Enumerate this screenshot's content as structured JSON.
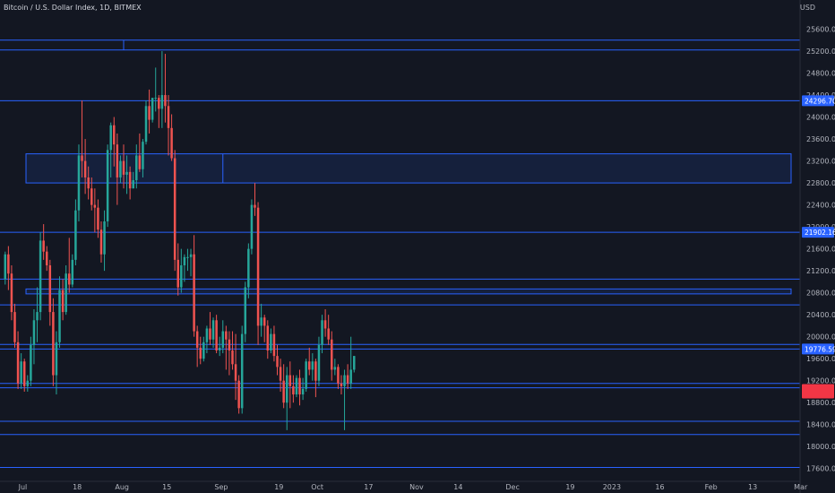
{
  "header": {
    "title": "Bitcoin / U.S. Dollar Index, 1D, BITMEX",
    "currency": "USD"
  },
  "colors": {
    "background": "#131722",
    "up": "#26a69a",
    "down": "#ef5350",
    "level_line": "#2962ff",
    "axis_text": "#b2b5be",
    "price_tag_red": "#f23645"
  },
  "chart_data": {
    "type": "candlestick",
    "title": "Bitcoin / U.S. Dollar Index, 1D, BITMEX",
    "currency": "USD",
    "ylim": [
      17400,
      26000
    ],
    "x_range": [
      0,
      246
    ],
    "y_ticks": [
      "17600.00",
      "18000.00",
      "18400.00",
      "18800.00",
      "19200.00",
      "19600.00",
      "20000.00",
      "20400.00",
      "20800.00",
      "21200.00",
      "21600.00",
      "22000.00",
      "22400.00",
      "22800.00",
      "23200.00",
      "23600.00",
      "24000.00",
      "24400.00",
      "24800.00",
      "25200.00",
      "25600.00"
    ],
    "x_ticks": [
      {
        "label": "Jul",
        "x": 6
      },
      {
        "label": "18",
        "x": 23
      },
      {
        "label": "Aug",
        "x": 37
      },
      {
        "label": "15",
        "x": 51
      },
      {
        "label": "Sep",
        "x": 68
      },
      {
        "label": "19",
        "x": 86
      },
      {
        "label": "Oct",
        "x": 98
      },
      {
        "label": "17",
        "x": 114
      },
      {
        "label": "Nov",
        "x": 129
      },
      {
        "label": "14",
        "x": 142
      },
      {
        "label": "Dec",
        "x": 159
      },
      {
        "label": "19",
        "x": 177
      },
      {
        "label": "2023",
        "x": 190
      },
      {
        "label": "16",
        "x": 205
      },
      {
        "label": "Feb",
        "x": 221
      },
      {
        "label": "13",
        "x": 234
      },
      {
        "label": "Mar",
        "x": 249
      }
    ],
    "price_labels": [
      {
        "price": 24296.7,
        "text": "24296.70",
        "color": "#2962ff"
      },
      {
        "price": 21902.16,
        "text": "21902.16",
        "color": "#2962ff"
      },
      {
        "price": 19776.59,
        "text": "19776.59",
        "color": "#2962ff"
      },
      {
        "price": 19040,
        "text": "",
        "color": "#f23645"
      }
    ],
    "horizontal_levels": [
      25400,
      25220,
      24296.7,
      21902.16,
      21050,
      20580,
      19860,
      19776.59,
      19150,
      19070,
      18460,
      18220,
      17620
    ],
    "zones": [
      {
        "x0": 7,
        "x1": 246,
        "y0": 20780,
        "y1": 20870
      },
      {
        "x0": 7,
        "x1": 246,
        "y0": 22800,
        "y1": 23330
      }
    ],
    "markers": [
      {
        "x": 37.5,
        "y0": 25220,
        "y1": 25400
      },
      {
        "x": 68.5,
        "y0": 22800,
        "y1": 23330
      }
    ],
    "candles": [
      [
        21050,
        21550,
        20950,
        21500
      ],
      [
        21500,
        21650,
        20850,
        21150
      ],
      [
        21150,
        21300,
        20300,
        20450
      ],
      [
        20450,
        20600,
        19800,
        19900
      ],
      [
        19900,
        20100,
        19050,
        19150
      ],
      [
        19150,
        19700,
        19050,
        19550
      ],
      [
        19550,
        19600,
        19000,
        19100
      ],
      [
        19100,
        19300,
        19000,
        19200
      ],
      [
        19200,
        20000,
        19100,
        19850
      ],
      [
        19850,
        20500,
        19500,
        20300
      ],
      [
        20300,
        20900,
        19900,
        20450
      ],
      [
        20450,
        21900,
        20300,
        21750
      ],
      [
        21750,
        22050,
        21400,
        21550
      ],
      [
        21550,
        21650,
        21200,
        21300
      ],
      [
        21300,
        21400,
        20200,
        20450
      ],
      [
        20450,
        20700,
        19100,
        19300
      ],
      [
        19300,
        20100,
        18950,
        19900
      ],
      [
        19900,
        21100,
        19800,
        20850
      ],
      [
        20850,
        21050,
        20300,
        20450
      ],
      [
        20450,
        21300,
        20400,
        21150
      ],
      [
        21150,
        21800,
        20800,
        20950
      ],
      [
        20950,
        21500,
        20900,
        21400
      ],
      [
        21400,
        22500,
        21300,
        22300
      ],
      [
        22300,
        23500,
        22100,
        23300
      ],
      [
        23300,
        24300,
        22900,
        23200
      ],
      [
        23200,
        23600,
        22600,
        22900
      ],
      [
        22900,
        23100,
        22500,
        22700
      ],
      [
        22700,
        22900,
        22300,
        22400
      ],
      [
        22400,
        22700,
        21900,
        22350
      ],
      [
        22350,
        22500,
        21800,
        21950
      ],
      [
        21950,
        22100,
        21350,
        21500
      ],
      [
        21500,
        22300,
        21200,
        22100
      ],
      [
        22100,
        23500,
        22000,
        23400
      ],
      [
        23400,
        23900,
        22900,
        23850
      ],
      [
        23850,
        24000,
        23100,
        23500
      ],
      [
        23500,
        23700,
        22400,
        22900
      ],
      [
        22900,
        23300,
        22800,
        23200
      ],
      [
        23200,
        23500,
        22700,
        22950
      ],
      [
        22950,
        23300,
        22600,
        23000
      ],
      [
        23000,
        23100,
        22500,
        22700
      ],
      [
        22700,
        23000,
        22700,
        22850
      ],
      [
        22850,
        23500,
        22700,
        23300
      ],
      [
        23300,
        23700,
        23000,
        23050
      ],
      [
        23050,
        23600,
        22900,
        23550
      ],
      [
        23550,
        24300,
        23500,
        24200
      ],
      [
        24200,
        24500,
        23700,
        23950
      ],
      [
        23950,
        24300,
        23900,
        24350
      ],
      [
        24350,
        24900,
        24100,
        24350
      ],
      [
        24350,
        24400,
        23800,
        24150
      ],
      [
        24150,
        25200,
        23800,
        24400
      ],
      [
        24400,
        25150,
        23900,
        24200
      ],
      [
        24200,
        24400,
        23300,
        23800
      ],
      [
        23800,
        24050,
        23200,
        23250
      ],
      [
        23250,
        23400,
        21200,
        21400
      ],
      [
        21400,
        21700,
        20750,
        20900
      ],
      [
        20900,
        21600,
        20800,
        21300
      ],
      [
        21300,
        21500,
        21000,
        21450
      ],
      [
        21450,
        21600,
        21200,
        21450
      ],
      [
        21450,
        21600,
        21100,
        21500
      ],
      [
        21500,
        21850,
        20000,
        20100
      ],
      [
        20100,
        20200,
        19450,
        19800
      ],
      [
        19800,
        20000,
        19500,
        19600
      ],
      [
        19600,
        20000,
        19550,
        19900
      ],
      [
        19900,
        20200,
        19700,
        20150
      ],
      [
        20150,
        20450,
        19850,
        19950
      ],
      [
        19950,
        20350,
        19800,
        20300
      ],
      [
        20300,
        20400,
        19700,
        19750
      ],
      [
        19750,
        20000,
        19650,
        19800
      ],
      [
        19800,
        20300,
        19700,
        20100
      ],
      [
        20100,
        20200,
        19400,
        19950
      ],
      [
        19950,
        20100,
        19300,
        19750
      ],
      [
        19750,
        20100,
        19400,
        19500
      ],
      [
        19500,
        20050,
        18850,
        19200
      ],
      [
        19200,
        19300,
        18600,
        18700
      ],
      [
        18700,
        20200,
        18600,
        20050
      ],
      [
        20050,
        21000,
        19900,
        20900
      ],
      [
        20900,
        21700,
        20700,
        21600
      ],
      [
        21600,
        22500,
        21500,
        22400
      ],
      [
        22400,
        22800,
        22200,
        22350
      ],
      [
        22350,
        22450,
        19850,
        20200
      ],
      [
        20200,
        20600,
        20000,
        20350
      ],
      [
        20350,
        20400,
        19900,
        20200
      ],
      [
        20200,
        20300,
        19600,
        19750
      ],
      [
        19750,
        20150,
        19700,
        20050
      ],
      [
        20050,
        20200,
        19550,
        19650
      ],
      [
        19650,
        19850,
        19300,
        19450
      ],
      [
        19450,
        19600,
        19000,
        19200
      ],
      [
        19200,
        19500,
        18700,
        18800
      ],
      [
        18800,
        19450,
        18300,
        19300
      ],
      [
        19300,
        19550,
        18700,
        19100
      ],
      [
        19100,
        19300,
        18800,
        18950
      ],
      [
        18950,
        19300,
        18900,
        19250
      ],
      [
        19250,
        19400,
        18750,
        18950
      ],
      [
        18950,
        19250,
        18850,
        19050
      ],
      [
        19050,
        19600,
        19000,
        19550
      ],
      [
        19550,
        19800,
        19300,
        19400
      ],
      [
        19400,
        19700,
        19200,
        19550
      ],
      [
        19550,
        19600,
        18900,
        19200
      ],
      [
        19200,
        20000,
        19100,
        19850
      ],
      [
        19850,
        20400,
        19700,
        20300
      ],
      [
        20300,
        20500,
        20000,
        20150
      ],
      [
        20150,
        20400,
        19850,
        19950
      ],
      [
        19950,
        20100,
        19200,
        19400
      ],
      [
        19400,
        19600,
        19300,
        19450
      ],
      [
        19450,
        19500,
        19050,
        19150
      ],
      [
        19150,
        19300,
        18950,
        19100
      ],
      [
        19100,
        19400,
        18300,
        19300
      ],
      [
        19300,
        19500,
        19050,
        19150
      ],
      [
        19150,
        20000,
        19050,
        19400
      ],
      [
        19400,
        19650,
        19350,
        19650
      ]
    ]
  }
}
